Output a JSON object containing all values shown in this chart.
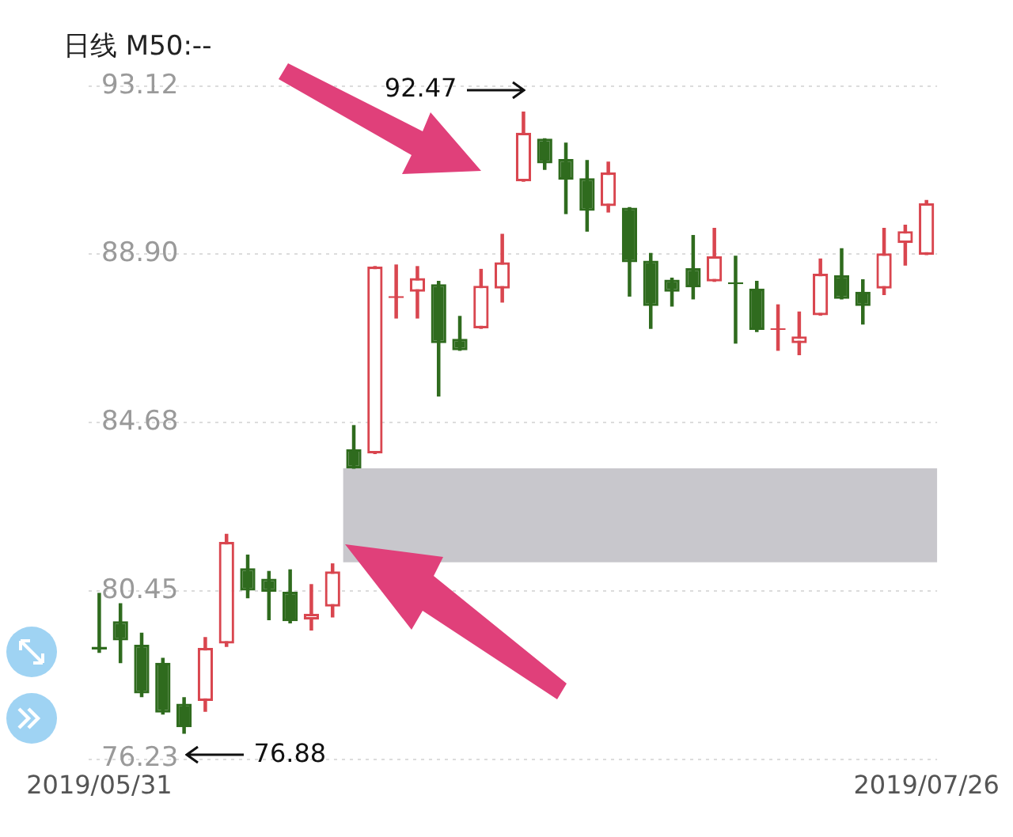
{
  "chart_data": {
    "type": "candlestick",
    "title": "日线 M50:--",
    "categories": [
      "2019/05/31",
      null,
      null,
      null,
      null,
      null,
      null,
      null,
      null,
      null,
      null,
      null,
      null,
      null,
      null,
      null,
      null,
      null,
      null,
      null,
      null,
      null,
      null,
      null,
      null,
      null,
      null,
      null,
      null,
      null,
      null,
      null,
      null,
      null,
      null,
      null,
      null,
      null,
      null,
      "2019/07/26"
    ],
    "ohlc": [
      [
        79.05,
        80.39,
        78.91,
        78.98
      ],
      [
        79.69,
        80.13,
        78.65,
        79.21
      ],
      [
        79.1,
        79.39,
        77.8,
        77.88
      ],
      [
        78.65,
        78.76,
        77.36,
        77.4
      ],
      [
        77.62,
        77.77,
        76.88,
        77.03
      ],
      [
        77.69,
        79.28,
        77.43,
        79.02
      ],
      [
        79.13,
        81.87,
        79.06,
        81.68
      ],
      [
        81.02,
        81.35,
        80.28,
        80.46
      ],
      [
        80.76,
        80.94,
        79.73,
        80.43
      ],
      [
        80.43,
        80.98,
        79.65,
        79.69
      ],
      [
        79.73,
        80.61,
        79.47,
        79.88
      ],
      [
        80.06,
        81.13,
        79.8,
        80.94
      ],
      [
        84.01,
        84.6,
        83.53,
        83.53
      ],
      [
        83.9,
        88.59,
        83.9,
        88.59
      ],
      [
        87.8,
        88.63,
        87.3,
        87.85
      ],
      [
        87.96,
        88.59,
        87.3,
        88.3
      ],
      [
        88.15,
        88.22,
        85.34,
        86.67
      ],
      [
        86.78,
        87.34,
        86.49,
        86.49
      ],
      [
        87.04,
        88.52,
        87.04,
        88.11
      ],
      [
        88.04,
        89.4,
        87.7,
        88.7
      ],
      [
        90.73,
        92.47,
        90.73,
        91.95
      ],
      [
        91.8,
        91.8,
        91.03,
        91.18
      ],
      [
        91.29,
        91.69,
        89.92,
        90.77
      ],
      [
        90.81,
        91.25,
        89.48,
        89.99
      ],
      [
        90.11,
        91.21,
        89.96,
        90.95
      ],
      [
        90.07,
        90.07,
        87.85,
        88.7
      ],
      [
        88.74,
        88.92,
        87.04,
        87.6
      ],
      [
        88.26,
        88.3,
        87.6,
        87.96
      ],
      [
        88.55,
        89.37,
        87.78,
        88.07
      ],
      [
        88.22,
        89.55,
        88.22,
        88.85
      ],
      [
        88.2,
        88.85,
        86.67,
        88.15
      ],
      [
        88.04,
        88.22,
        86.96,
        87.0
      ],
      [
        87.0,
        87.63,
        86.49,
        87.04
      ],
      [
        86.67,
        87.45,
        86.38,
        86.84
      ],
      [
        87.37,
        88.78,
        87.37,
        88.41
      ],
      [
        88.37,
        89.04,
        87.78,
        87.78
      ],
      [
        87.96,
        88.26,
        87.15,
        87.6
      ],
      [
        88.04,
        89.55,
        87.89,
        88.92
      ],
      [
        89.18,
        89.63,
        88.63,
        89.48
      ],
      [
        88.89,
        90.25,
        88.89,
        90.18
      ]
    ],
    "colors": [
      "#2f6b1e",
      "#2f6b1e",
      "#2f6b1e",
      "#2f6b1e",
      "#2f6b1e",
      "#d9464f",
      "#d9464f",
      "#2f6b1e",
      "#2f6b1e",
      "#2f6b1e",
      "#d9464f",
      "#d9464f",
      "#2f6b1e",
      "#d9464f",
      "#d9464f",
      "#d9464f",
      "#2f6b1e",
      "#2f6b1e",
      "#d9464f",
      "#d9464f",
      "#d9464f",
      "#2f6b1e",
      "#2f6b1e",
      "#2f6b1e",
      "#d9464f",
      "#2f6b1e",
      "#2f6b1e",
      "#2f6b1e",
      "#2f6b1e",
      "#d9464f",
      "#2f6b1e",
      "#2f6b1e",
      "#d9464f",
      "#d9464f",
      "#d9464f",
      "#2f6b1e",
      "#2f6b1e",
      "#d9464f",
      "#d9464f",
      "#d9464f"
    ],
    "ylim": [
      76.23,
      93.12
    ],
    "yticks": [
      {
        "value": 76.23,
        "label": "76.23"
      },
      {
        "value": 80.45,
        "label": "80.45"
      },
      {
        "value": 84.68,
        "label": "84.68"
      },
      {
        "value": 88.9,
        "label": "88.90"
      },
      {
        "value": 93.12,
        "label": "93.12"
      }
    ],
    "grid": "y",
    "bands": [
      {
        "axis": "y",
        "from": 81.17,
        "to": 83.53,
        "color": "#c8c7cc"
      }
    ],
    "annotations": [
      "92.47",
      "76.88"
    ]
  }
}
